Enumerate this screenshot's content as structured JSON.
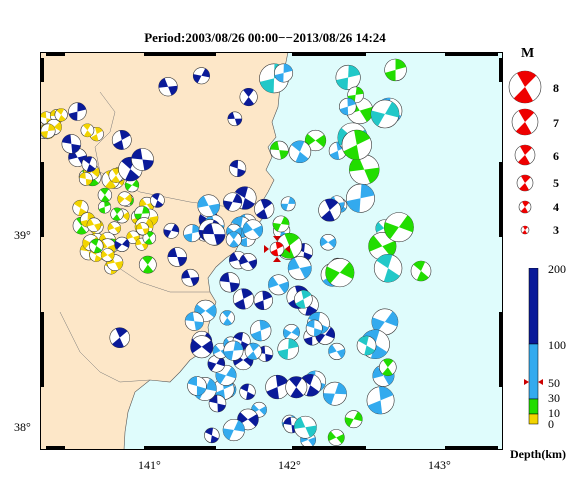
{
  "title": "Period:2003/08/26 00:00−−2013/08/26 14:24",
  "y_axis_labels": [
    "39°",
    "38°"
  ],
  "x_axis_labels": [
    "141°",
    "142°",
    "143°"
  ],
  "magnitude_legend": {
    "header": "M",
    "values": [
      "8",
      "7",
      "6",
      "5",
      "4",
      "3"
    ]
  },
  "depth_colorbar": {
    "ticks": [
      "200",
      "100",
      "50",
      "30",
      "10",
      "0"
    ],
    "label": "Depth(km)",
    "colors": {
      "very_shallow": "#f2d400",
      "shallow": "#22dd00",
      "intermediate": "#33aaee",
      "deep": "#0a1a99"
    }
  },
  "colors": {
    "land": "#fde7c8",
    "sea": "#dffcfc",
    "highlight": "#ee0000",
    "offshore_mechanism": "#22c8c8"
  },
  "chart_data": {
    "type": "map",
    "region_lon": [
      140.4,
      143.4
    ],
    "region_lat": [
      37.9,
      39.9
    ],
    "grid_lon": [
      141,
      142,
      143
    ],
    "grid_lat": [
      38,
      39
    ],
    "event_count_visible": "many (focal mechanism beachballs)",
    "highlighted_event": {
      "lon": 141.93,
      "lat": 39.06,
      "depth_km": 50,
      "color": "red"
    }
  }
}
